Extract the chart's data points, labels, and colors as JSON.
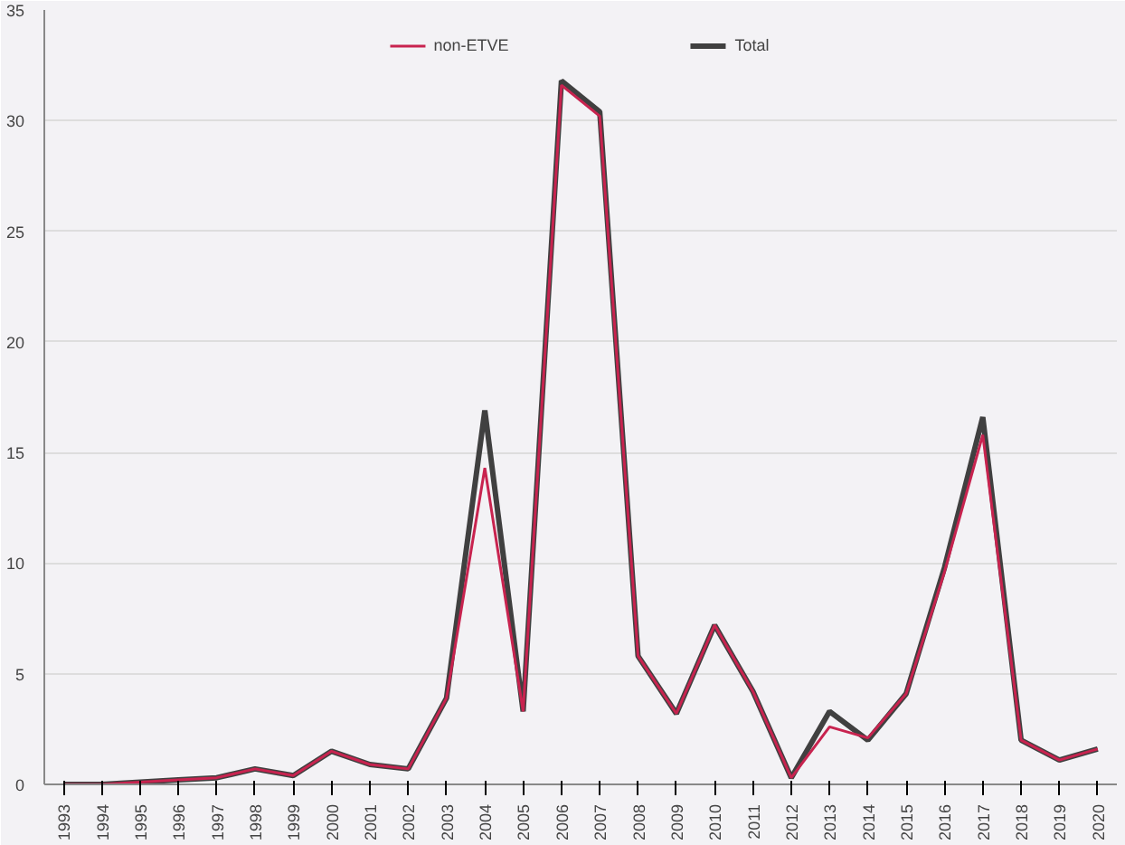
{
  "chart_data": {
    "type": "line",
    "categories": [
      "1993",
      "1994",
      "1995",
      "1996",
      "1997",
      "1998",
      "1999",
      "2000",
      "2001",
      "2002",
      "2003",
      "2004",
      "2005",
      "2006",
      "2007",
      "2008",
      "2009",
      "2010",
      "2011",
      "2012",
      "2013",
      "2014",
      "2015",
      "2016",
      "2017",
      "2018",
      "2019",
      "2020"
    ],
    "series": [
      {
        "name": "non-ETVE",
        "color": "#c8234f",
        "values": [
          0,
          0,
          0.1,
          0.2,
          0.3,
          0.7,
          0.4,
          1.5,
          0.9,
          0.7,
          3.9,
          14.3,
          3.3,
          31.6,
          30.2,
          5.8,
          3.2,
          7.2,
          4.2,
          0.3,
          2.6,
          2.1,
          4.1,
          9.6,
          15.8,
          2.0,
          1.1,
          1.6
        ]
      },
      {
        "name": "Total",
        "color": "#404040",
        "values": [
          0,
          0,
          0.1,
          0.2,
          0.3,
          0.7,
          0.4,
          1.5,
          0.9,
          0.7,
          3.9,
          16.9,
          3.3,
          31.8,
          30.4,
          5.8,
          3.2,
          7.2,
          4.2,
          0.3,
          3.3,
          2.0,
          4.1,
          9.8,
          16.6,
          2.0,
          1.1,
          1.6
        ]
      }
    ],
    "ylim": [
      0,
      35
    ],
    "yticks": [
      0,
      5,
      10,
      15,
      20,
      25,
      30,
      35
    ],
    "grid": "y",
    "legend": "top",
    "marker": "none",
    "line_style": "solid"
  }
}
